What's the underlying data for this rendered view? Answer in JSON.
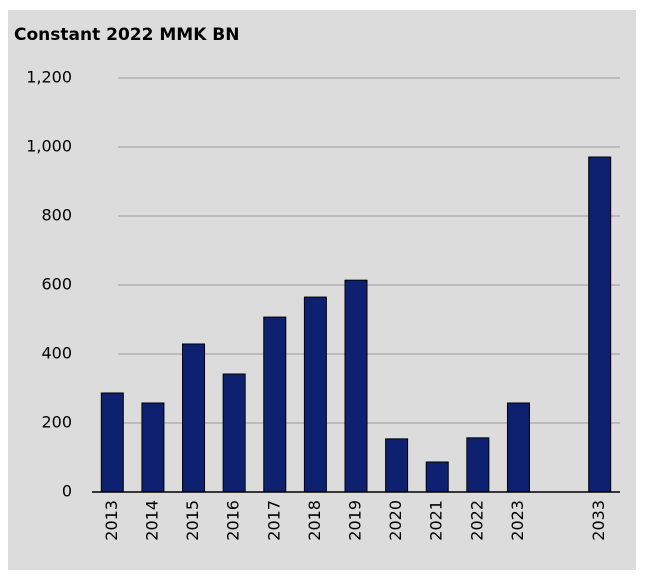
{
  "chart_data": {
    "type": "bar",
    "title": "Constant 2022 MMK BN",
    "categories": [
      "2013",
      "2014",
      "2015",
      "2016",
      "2017",
      "2018",
      "2019",
      "2020",
      "2021",
      "2022",
      "2023",
      null,
      "2033"
    ],
    "values": [
      287,
      258,
      429,
      342,
      507,
      565,
      614,
      154,
      87,
      157,
      258,
      null,
      971
    ],
    "color": "#0d2170",
    "ylim": [
      0,
      1200
    ],
    "yticks": [
      0,
      200,
      400,
      600,
      800,
      {
        "value": 1000,
        "label": "1,000"
      },
      {
        "value": 1200,
        "label": "1,200"
      }
    ],
    "grid": true
  }
}
